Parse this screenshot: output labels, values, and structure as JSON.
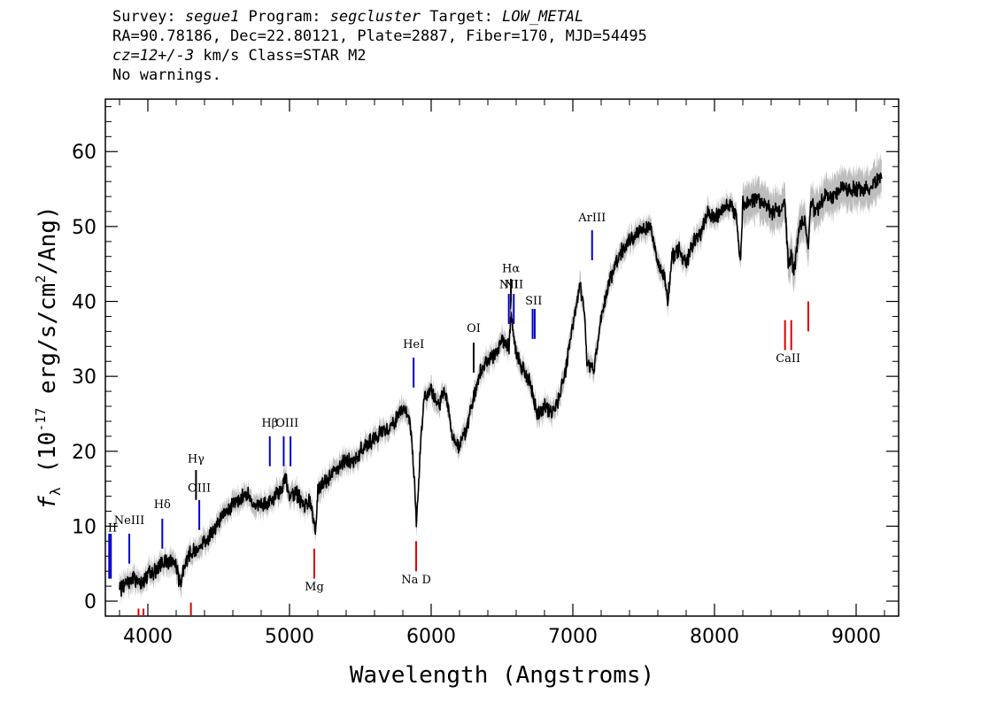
{
  "header": {
    "survey_label": "Survey: ",
    "survey": "segue1",
    "program_label": " Program: ",
    "program": "segcluster",
    "target_label": " Target: ",
    "target": "LOW_METAL",
    "line2": "RA=90.78186, Dec=22.80121, Plate=2887, Fiber=170, MJD=54495",
    "cz_value": "cz=12+/-3",
    "line3_rest": " km/s Class=STAR M2",
    "line4": "No warnings."
  },
  "chart_data": {
    "type": "line",
    "xlabel": "Wavelength (Angstroms)",
    "ylabel_prefix": "f",
    "ylabel_sub": "λ",
    "ylabel_main": " (10",
    "ylabel_exp": "-17",
    "ylabel_rest": " erg/s/cm",
    "ylabel_exp2": "2",
    "ylabel_end": "/Ang)",
    "xlim": [
      3700,
      9300
    ],
    "ylim": [
      -2,
      67
    ],
    "x_ticks": [
      "4000",
      "5000",
      "6000",
      "7000",
      "8000",
      "9000"
    ],
    "y_ticks": [
      "0",
      "10",
      "20",
      "30",
      "40",
      "50",
      "60"
    ],
    "series": [
      {
        "color": "#000000",
        "error_color": "#bdbdbd",
        "x": [
          3800,
          3850,
          3900,
          3950,
          4000,
          4050,
          4100,
          4150,
          4200,
          4227,
          4260,
          4300,
          4350,
          4400,
          4450,
          4500,
          4550,
          4600,
          4650,
          4700,
          4750,
          4800,
          4850,
          4900,
          4950,
          4970,
          5000,
          5050,
          5100,
          5150,
          5167,
          5183,
          5200,
          5250,
          5300,
          5350,
          5400,
          5450,
          5500,
          5550,
          5600,
          5650,
          5700,
          5750,
          5800,
          5850,
          5880,
          5895,
          5920,
          5950,
          6000,
          6050,
          6100,
          6150,
          6180,
          6200,
          6250,
          6300,
          6350,
          6400,
          6450,
          6500,
          6550,
          6563,
          6600,
          6650,
          6700,
          6750,
          6800,
          6850,
          6900,
          6950,
          7000,
          7050,
          7080,
          7100,
          7150,
          7200,
          7250,
          7300,
          7350,
          7400,
          7450,
          7500,
          7550,
          7600,
          7650,
          7670,
          7700,
          7750,
          7800,
          7850,
          7900,
          7950,
          8000,
          8050,
          8100,
          8150,
          8183,
          8200,
          8250,
          8300,
          8350,
          8400,
          8450,
          8498,
          8520,
          8542,
          8560,
          8600,
          8640,
          8662,
          8680,
          8720,
          8780,
          8840,
          8900,
          8960,
          9020,
          9080,
          9140,
          9180
        ],
        "values": [
          1.5,
          2.5,
          3,
          2.5,
          3.5,
          4,
          5,
          5.5,
          5,
          2,
          5,
          6.5,
          7,
          8,
          9,
          10.5,
          12,
          13,
          13.5,
          14.5,
          13,
          12.5,
          13,
          14,
          15,
          17,
          14,
          14.5,
          12.5,
          13.5,
          11,
          9,
          14.5,
          16,
          17,
          18,
          19,
          18.5,
          20,
          21,
          21.5,
          22.5,
          23,
          24,
          26,
          24,
          17,
          10,
          19,
          27.5,
          28,
          26,
          28,
          22,
          20.5,
          21,
          23,
          27,
          31,
          32,
          33,
          35,
          34,
          38,
          33,
          31,
          29,
          25,
          26,
          25,
          27,
          31,
          37,
          42,
          39,
          32,
          31,
          38,
          42,
          45,
          47,
          48,
          49,
          50,
          50,
          45,
          43,
          40,
          46,
          47,
          45,
          48,
          49,
          52,
          51,
          52,
          53,
          52,
          45,
          53,
          53,
          54,
          53,
          52,
          52,
          53,
          45,
          46,
          44,
          50,
          51,
          47,
          53,
          52,
          54,
          54,
          55,
          55,
          55,
          55,
          56,
          57
        ]
      }
    ],
    "emission_lines": [
      {
        "label": "II",
        "x": 3727,
        "y_top": 9,
        "y_bot": 3,
        "label_y": 9.3,
        "color": "#0000cc",
        "double": true
      },
      {
        "label": "NeIII",
        "x": 3869,
        "y_top": 9,
        "y_bot": 5,
        "label_y": 10.3,
        "color": "#0000cc"
      },
      {
        "label": "Hδ",
        "x": 4102,
        "y_top": 11,
        "y_bot": 7,
        "label_y": 12.4,
        "color": "#0000cc"
      },
      {
        "label": "Hγ",
        "x": 4340,
        "y_top": 17.5,
        "y_bot": 13.5,
        "label_y": 18.5,
        "color": "#000000"
      },
      {
        "label": "OIII",
        "x": 4363,
        "y_top": 13.5,
        "y_bot": 9.5,
        "label_y": 14.6,
        "color": "#0000cc"
      },
      {
        "label": "Hβ",
        "x": 4861,
        "y_top": 22,
        "y_bot": 18,
        "label_y": 23.3,
        "color": "#0000cc"
      },
      {
        "label": "OIII",
        "x": 4959,
        "y_top": 22,
        "y_bot": 18,
        "label_y": 23.3,
        "color": "#0000cc",
        "double_x": 5007
      },
      {
        "label": "HeI",
        "x": 5876,
        "y_top": 32.5,
        "y_bot": 28.5,
        "label_y": 33.8,
        "color": "#0000cc"
      },
      {
        "label": "OI",
        "x": 6300,
        "y_top": 34.5,
        "y_bot": 30.5,
        "label_y": 35.9,
        "color": "#000000"
      },
      {
        "label": "NII",
        "x": 6548,
        "y_top": 41,
        "y_bot": 37,
        "label_y": 41.8,
        "color": "#0000cc"
      },
      {
        "label": "Hα",
        "x": 6563,
        "y_top": 43,
        "y_bot": 38.5,
        "label_y": 43.9,
        "color": "#000000"
      },
      {
        "label": "NII",
        "x": 6583,
        "y_top": 41,
        "y_bot": 37,
        "label_y": 41.8,
        "color": "#0000cc"
      },
      {
        "label": "SII",
        "x": 6716,
        "y_top": 39,
        "y_bot": 35,
        "label_y": 39.6,
        "color": "#0000cc",
        "double_x": 6731
      },
      {
        "label": "ArIII",
        "x": 7136,
        "y_top": 49.5,
        "y_bot": 45.5,
        "label_y": 50.7,
        "color": "#0000cc"
      }
    ],
    "absorption_lines": [
      {
        "label": "Mg",
        "x": 5175,
        "y_top": 7,
        "y_bot": 3,
        "label_y": 1.4,
        "color": "#dd0000"
      },
      {
        "label": "Na  D",
        "x": 5894,
        "y_top": 8,
        "y_bot": 4,
        "label_y": 2.4,
        "color": "#dd0000"
      },
      {
        "label": "CaII",
        "x": 8498,
        "y_top": 37.5,
        "y_bot": 33.5,
        "label_y": 31.9,
        "color": "#dd0000",
        "double_x": 8542
      },
      {
        "label": "",
        "x": 8662,
        "y_top": 40,
        "y_bot": 36,
        "label_y": 0,
        "color": "#dd0000"
      },
      {
        "label": "",
        "x": 3934,
        "y_top": -1,
        "y_bot": -3,
        "label_y": 0,
        "color": "#dd0000",
        "double_x": 3969
      },
      {
        "label": "",
        "x": 4304,
        "y_top": -0.2,
        "y_bot": -3,
        "label_y": 0,
        "color": "#dd0000"
      }
    ]
  }
}
